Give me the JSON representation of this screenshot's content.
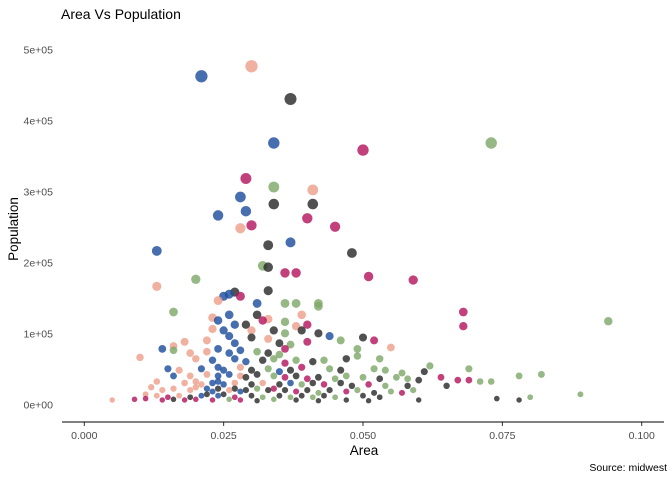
{
  "chart_data": {
    "type": "scatter",
    "title": "Area Vs Population",
    "xlabel": "Area",
    "ylabel": "Population",
    "caption": "Source: midwest",
    "xlim": [
      -0.004,
      0.104
    ],
    "ylim": [
      -25000,
      530000
    ],
    "x_ticks": [
      0.0,
      0.025,
      0.05,
      0.075,
      0.1
    ],
    "x_tick_labels": [
      "0.000",
      "0.025",
      "0.050",
      "0.075",
      "0.100"
    ],
    "y_ticks": [
      0,
      100000,
      200000,
      300000,
      400000,
      500000
    ],
    "y_tick_labels": [
      "0e+00",
      "1e+05",
      "2e+05",
      "3e+05",
      "4e+05",
      "5e+05"
    ],
    "grid": false,
    "legend": "none",
    "colors": {
      "blue": "#1f4e9e",
      "salmon": "#eea08c",
      "green": "#7fa86a",
      "dark": "#2b2b2b",
      "magenta": "#b5175f"
    },
    "points": [
      {
        "x": 0.021,
        "y": 462000,
        "c": "blue"
      },
      {
        "x": 0.03,
        "y": 476000,
        "c": "salmon"
      },
      {
        "x": 0.037,
        "y": 430000,
        "c": "dark"
      },
      {
        "x": 0.034,
        "y": 368000,
        "c": "blue"
      },
      {
        "x": 0.05,
        "y": 358000,
        "c": "magenta"
      },
      {
        "x": 0.073,
        "y": 368000,
        "c": "green"
      },
      {
        "x": 0.029,
        "y": 318000,
        "c": "magenta"
      },
      {
        "x": 0.034,
        "y": 306000,
        "c": "green"
      },
      {
        "x": 0.041,
        "y": 302000,
        "c": "salmon"
      },
      {
        "x": 0.028,
        "y": 292000,
        "c": "blue"
      },
      {
        "x": 0.034,
        "y": 282000,
        "c": "dark"
      },
      {
        "x": 0.041,
        "y": 282000,
        "c": "dark"
      },
      {
        "x": 0.029,
        "y": 272000,
        "c": "blue"
      },
      {
        "x": 0.024,
        "y": 266000,
        "c": "blue"
      },
      {
        "x": 0.04,
        "y": 262000,
        "c": "magenta"
      },
      {
        "x": 0.03,
        "y": 252000,
        "c": "magenta"
      },
      {
        "x": 0.028,
        "y": 248000,
        "c": "salmon"
      },
      {
        "x": 0.045,
        "y": 250000,
        "c": "magenta"
      },
      {
        "x": 0.033,
        "y": 224000,
        "c": "dark"
      },
      {
        "x": 0.037,
        "y": 228000,
        "c": "blue"
      },
      {
        "x": 0.013,
        "y": 216000,
        "c": "blue"
      },
      {
        "x": 0.048,
        "y": 213000,
        "c": "dark"
      },
      {
        "x": 0.032,
        "y": 195000,
        "c": "green"
      },
      {
        "x": 0.033,
        "y": 193000,
        "c": "dark"
      },
      {
        "x": 0.036,
        "y": 185000,
        "c": "magenta"
      },
      {
        "x": 0.038,
        "y": 185000,
        "c": "magenta"
      },
      {
        "x": 0.051,
        "y": 180000,
        "c": "magenta"
      },
      {
        "x": 0.02,
        "y": 176000,
        "c": "green"
      },
      {
        "x": 0.059,
        "y": 175000,
        "c": "magenta"
      },
      {
        "x": 0.013,
        "y": 166000,
        "c": "salmon"
      },
      {
        "x": 0.027,
        "y": 158000,
        "c": "dark"
      },
      {
        "x": 0.033,
        "y": 160000,
        "c": "dark"
      },
      {
        "x": 0.025,
        "y": 152000,
        "c": "blue"
      },
      {
        "x": 0.026,
        "y": 155000,
        "c": "blue"
      },
      {
        "x": 0.024,
        "y": 146000,
        "c": "salmon"
      },
      {
        "x": 0.028,
        "y": 152000,
        "c": "magenta"
      },
      {
        "x": 0.031,
        "y": 142000,
        "c": "blue"
      },
      {
        "x": 0.036,
        "y": 142000,
        "c": "green"
      },
      {
        "x": 0.038,
        "y": 142000,
        "c": "green"
      },
      {
        "x": 0.042,
        "y": 142000,
        "c": "green"
      },
      {
        "x": 0.042,
        "y": 138000,
        "c": "green"
      },
      {
        "x": 0.016,
        "y": 130000,
        "c": "green"
      },
      {
        "x": 0.068,
        "y": 130000,
        "c": "magenta"
      },
      {
        "x": 0.094,
        "y": 117000,
        "c": "green"
      },
      {
        "x": 0.023,
        "y": 122000,
        "c": "salmon"
      },
      {
        "x": 0.026,
        "y": 126000,
        "c": "blue"
      },
      {
        "x": 0.031,
        "y": 126000,
        "c": "dark"
      },
      {
        "x": 0.033,
        "y": 120000,
        "c": "salmon"
      },
      {
        "x": 0.039,
        "y": 126000,
        "c": "salmon"
      },
      {
        "x": 0.024,
        "y": 118000,
        "c": "blue"
      },
      {
        "x": 0.027,
        "y": 112000,
        "c": "blue"
      },
      {
        "x": 0.029,
        "y": 112000,
        "c": "dark"
      },
      {
        "x": 0.032,
        "y": 118000,
        "c": "magenta"
      },
      {
        "x": 0.036,
        "y": 116000,
        "c": "green"
      },
      {
        "x": 0.038,
        "y": 110000,
        "c": "salmon"
      },
      {
        "x": 0.04,
        "y": 112000,
        "c": "magenta"
      },
      {
        "x": 0.068,
        "y": 110000,
        "c": "magenta"
      },
      {
        "x": 0.023,
        "y": 106000,
        "c": "salmon"
      },
      {
        "x": 0.025,
        "y": 104000,
        "c": "blue"
      },
      {
        "x": 0.03,
        "y": 104000,
        "c": "salmon"
      },
      {
        "x": 0.034,
        "y": 104000,
        "c": "dark"
      },
      {
        "x": 0.036,
        "y": 100000,
        "c": "green"
      },
      {
        "x": 0.039,
        "y": 104000,
        "c": "dark"
      },
      {
        "x": 0.042,
        "y": 100000,
        "c": "dark"
      },
      {
        "x": 0.044,
        "y": 96000,
        "c": "blue"
      },
      {
        "x": 0.014,
        "y": 78000,
        "c": "blue"
      },
      {
        "x": 0.016,
        "y": 82000,
        "c": "salmon"
      },
      {
        "x": 0.018,
        "y": 88000,
        "c": "salmon"
      },
      {
        "x": 0.022,
        "y": 90000,
        "c": "salmon"
      },
      {
        "x": 0.026,
        "y": 96000,
        "c": "blue"
      },
      {
        "x": 0.027,
        "y": 86000,
        "c": "blue"
      },
      {
        "x": 0.03,
        "y": 94000,
        "c": "dark"
      },
      {
        "x": 0.033,
        "y": 92000,
        "c": "salmon"
      },
      {
        "x": 0.035,
        "y": 86000,
        "c": "dark"
      },
      {
        "x": 0.037,
        "y": 84000,
        "c": "green"
      },
      {
        "x": 0.04,
        "y": 88000,
        "c": "magenta"
      },
      {
        "x": 0.046,
        "y": 90000,
        "c": "green"
      },
      {
        "x": 0.05,
        "y": 94000,
        "c": "dark"
      },
      {
        "x": 0.052,
        "y": 90000,
        "c": "magenta"
      },
      {
        "x": 0.016,
        "y": 76000,
        "c": "green"
      },
      {
        "x": 0.019,
        "y": 72000,
        "c": "salmon"
      },
      {
        "x": 0.022,
        "y": 74000,
        "c": "salmon"
      },
      {
        "x": 0.024,
        "y": 78000,
        "c": "blue"
      },
      {
        "x": 0.026,
        "y": 72000,
        "c": "blue"
      },
      {
        "x": 0.028,
        "y": 76000,
        "c": "blue"
      },
      {
        "x": 0.031,
        "y": 74000,
        "c": "green"
      },
      {
        "x": 0.033,
        "y": 72000,
        "c": "dark"
      },
      {
        "x": 0.035,
        "y": 70000,
        "c": "green"
      },
      {
        "x": 0.036,
        "y": 78000,
        "c": "magenta"
      },
      {
        "x": 0.049,
        "y": 78000,
        "c": "green"
      },
      {
        "x": 0.055,
        "y": 80000,
        "c": "salmon"
      },
      {
        "x": 0.01,
        "y": 66000,
        "c": "salmon"
      },
      {
        "x": 0.02,
        "y": 64000,
        "c": "salmon"
      },
      {
        "x": 0.023,
        "y": 62000,
        "c": "blue"
      },
      {
        "x": 0.027,
        "y": 64000,
        "c": "blue"
      },
      {
        "x": 0.029,
        "y": 60000,
        "c": "blue"
      },
      {
        "x": 0.032,
        "y": 62000,
        "c": "dark"
      },
      {
        "x": 0.034,
        "y": 64000,
        "c": "green"
      },
      {
        "x": 0.036,
        "y": 58000,
        "c": "magenta"
      },
      {
        "x": 0.038,
        "y": 62000,
        "c": "green"
      },
      {
        "x": 0.041,
        "y": 60000,
        "c": "dark"
      },
      {
        "x": 0.043,
        "y": 62000,
        "c": "green"
      },
      {
        "x": 0.047,
        "y": 64000,
        "c": "dark"
      },
      {
        "x": 0.049,
        "y": 68000,
        "c": "green"
      },
      {
        "x": 0.053,
        "y": 64000,
        "c": "green"
      },
      {
        "x": 0.062,
        "y": 54000,
        "c": "green"
      },
      {
        "x": 0.069,
        "y": 50000,
        "c": "green"
      },
      {
        "x": 0.015,
        "y": 50000,
        "c": "blue"
      },
      {
        "x": 0.017,
        "y": 48000,
        "c": "salmon"
      },
      {
        "x": 0.021,
        "y": 50000,
        "c": "blue"
      },
      {
        "x": 0.024,
        "y": 52000,
        "c": "blue"
      },
      {
        "x": 0.025,
        "y": 48000,
        "c": "blue"
      },
      {
        "x": 0.028,
        "y": 52000,
        "c": "salmon"
      },
      {
        "x": 0.03,
        "y": 48000,
        "c": "dark"
      },
      {
        "x": 0.033,
        "y": 50000,
        "c": "green"
      },
      {
        "x": 0.035,
        "y": 46000,
        "c": "blue"
      },
      {
        "x": 0.037,
        "y": 48000,
        "c": "dark"
      },
      {
        "x": 0.039,
        "y": 52000,
        "c": "magenta"
      },
      {
        "x": 0.044,
        "y": 50000,
        "c": "green"
      },
      {
        "x": 0.046,
        "y": 48000,
        "c": "dark"
      },
      {
        "x": 0.052,
        "y": 50000,
        "c": "green"
      },
      {
        "x": 0.054,
        "y": 48000,
        "c": "green"
      },
      {
        "x": 0.057,
        "y": 44000,
        "c": "green"
      },
      {
        "x": 0.061,
        "y": 46000,
        "c": "dark"
      },
      {
        "x": 0.016,
        "y": 40000,
        "c": "blue"
      },
      {
        "x": 0.019,
        "y": 40000,
        "c": "salmon"
      },
      {
        "x": 0.022,
        "y": 42000,
        "c": "salmon"
      },
      {
        "x": 0.024,
        "y": 40000,
        "c": "blue"
      },
      {
        "x": 0.026,
        "y": 42000,
        "c": "blue"
      },
      {
        "x": 0.028,
        "y": 40000,
        "c": "salmon"
      },
      {
        "x": 0.029,
        "y": 38000,
        "c": "dark"
      },
      {
        "x": 0.031,
        "y": 42000,
        "c": "dark"
      },
      {
        "x": 0.034,
        "y": 40000,
        "c": "green"
      },
      {
        "x": 0.036,
        "y": 38000,
        "c": "magenta"
      },
      {
        "x": 0.038,
        "y": 40000,
        "c": "dark"
      },
      {
        "x": 0.04,
        "y": 36000,
        "c": "magenta"
      },
      {
        "x": 0.042,
        "y": 38000,
        "c": "dark"
      },
      {
        "x": 0.045,
        "y": 36000,
        "c": "green"
      },
      {
        "x": 0.047,
        "y": 40000,
        "c": "green"
      },
      {
        "x": 0.05,
        "y": 38000,
        "c": "green"
      },
      {
        "x": 0.053,
        "y": 36000,
        "c": "dark"
      },
      {
        "x": 0.056,
        "y": 38000,
        "c": "green"
      },
      {
        "x": 0.058,
        "y": 36000,
        "c": "green"
      },
      {
        "x": 0.06,
        "y": 34000,
        "c": "dark"
      },
      {
        "x": 0.064,
        "y": 38000,
        "c": "magenta"
      },
      {
        "x": 0.067,
        "y": 34000,
        "c": "magenta"
      },
      {
        "x": 0.069,
        "y": 34000,
        "c": "magenta"
      },
      {
        "x": 0.071,
        "y": 32000,
        "c": "green"
      },
      {
        "x": 0.073,
        "y": 32000,
        "c": "green"
      },
      {
        "x": 0.078,
        "y": 40000,
        "c": "green"
      },
      {
        "x": 0.082,
        "y": 42000,
        "c": "green"
      },
      {
        "x": 0.013,
        "y": 32000,
        "c": "salmon"
      },
      {
        "x": 0.018,
        "y": 30000,
        "c": "salmon"
      },
      {
        "x": 0.02,
        "y": 32000,
        "c": "salmon"
      },
      {
        "x": 0.021,
        "y": 28000,
        "c": "salmon"
      },
      {
        "x": 0.023,
        "y": 30000,
        "c": "blue"
      },
      {
        "x": 0.024,
        "y": 32000,
        "c": "blue"
      },
      {
        "x": 0.025,
        "y": 28000,
        "c": "blue"
      },
      {
        "x": 0.027,
        "y": 30000,
        "c": "salmon"
      },
      {
        "x": 0.03,
        "y": 28000,
        "c": "dark"
      },
      {
        "x": 0.032,
        "y": 30000,
        "c": "salmon"
      },
      {
        "x": 0.035,
        "y": 28000,
        "c": "dark"
      },
      {
        "x": 0.037,
        "y": 30000,
        "c": "blue"
      },
      {
        "x": 0.039,
        "y": 28000,
        "c": "green"
      },
      {
        "x": 0.041,
        "y": 30000,
        "c": "dark"
      },
      {
        "x": 0.043,
        "y": 28000,
        "c": "magenta"
      },
      {
        "x": 0.046,
        "y": 30000,
        "c": "dark"
      },
      {
        "x": 0.048,
        "y": 26000,
        "c": "dark"
      },
      {
        "x": 0.051,
        "y": 28000,
        "c": "magenta"
      },
      {
        "x": 0.054,
        "y": 26000,
        "c": "green"
      },
      {
        "x": 0.058,
        "y": 26000,
        "c": "dark"
      },
      {
        "x": 0.065,
        "y": 26000,
        "c": "dark"
      },
      {
        "x": 0.012,
        "y": 24000,
        "c": "salmon"
      },
      {
        "x": 0.014,
        "y": 20000,
        "c": "salmon"
      },
      {
        "x": 0.016,
        "y": 22000,
        "c": "salmon"
      },
      {
        "x": 0.019,
        "y": 20000,
        "c": "salmon"
      },
      {
        "x": 0.02,
        "y": 24000,
        "c": "salmon"
      },
      {
        "x": 0.022,
        "y": 22000,
        "c": "blue"
      },
      {
        "x": 0.023,
        "y": 18000,
        "c": "blue"
      },
      {
        "x": 0.024,
        "y": 22000,
        "c": "dark"
      },
      {
        "x": 0.026,
        "y": 20000,
        "c": "salmon"
      },
      {
        "x": 0.027,
        "y": 22000,
        "c": "dark"
      },
      {
        "x": 0.028,
        "y": 18000,
        "c": "blue"
      },
      {
        "x": 0.029,
        "y": 20000,
        "c": "dark"
      },
      {
        "x": 0.031,
        "y": 22000,
        "c": "green"
      },
      {
        "x": 0.033,
        "y": 20000,
        "c": "dark"
      },
      {
        "x": 0.034,
        "y": 22000,
        "c": "magenta"
      },
      {
        "x": 0.036,
        "y": 20000,
        "c": "dark"
      },
      {
        "x": 0.038,
        "y": 18000,
        "c": "magenta"
      },
      {
        "x": 0.04,
        "y": 20000,
        "c": "dark"
      },
      {
        "x": 0.042,
        "y": 16000,
        "c": "green"
      },
      {
        "x": 0.044,
        "y": 20000,
        "c": "dark"
      },
      {
        "x": 0.047,
        "y": 18000,
        "c": "magenta"
      },
      {
        "x": 0.049,
        "y": 20000,
        "c": "green"
      },
      {
        "x": 0.052,
        "y": 16000,
        "c": "dark"
      },
      {
        "x": 0.055,
        "y": 18000,
        "c": "green"
      },
      {
        "x": 0.057,
        "y": 16000,
        "c": "magenta"
      },
      {
        "x": 0.059,
        "y": 20000,
        "c": "green"
      },
      {
        "x": 0.011,
        "y": 14000,
        "c": "salmon"
      },
      {
        "x": 0.013,
        "y": 12000,
        "c": "salmon"
      },
      {
        "x": 0.015,
        "y": 10000,
        "c": "magenta"
      },
      {
        "x": 0.017,
        "y": 12000,
        "c": "salmon"
      },
      {
        "x": 0.019,
        "y": 10000,
        "c": "dark"
      },
      {
        "x": 0.021,
        "y": 12000,
        "c": "blue"
      },
      {
        "x": 0.022,
        "y": 14000,
        "c": "dark"
      },
      {
        "x": 0.024,
        "y": 12000,
        "c": "blue"
      },
      {
        "x": 0.025,
        "y": 14000,
        "c": "dark"
      },
      {
        "x": 0.027,
        "y": 10000,
        "c": "magenta"
      },
      {
        "x": 0.03,
        "y": 12000,
        "c": "dark"
      },
      {
        "x": 0.032,
        "y": 10000,
        "c": "green"
      },
      {
        "x": 0.035,
        "y": 12000,
        "c": "dark"
      },
      {
        "x": 0.037,
        "y": 10000,
        "c": "green"
      },
      {
        "x": 0.039,
        "y": 12000,
        "c": "dark"
      },
      {
        "x": 0.041,
        "y": 10000,
        "c": "green"
      },
      {
        "x": 0.043,
        "y": 12000,
        "c": "dark"
      },
      {
        "x": 0.045,
        "y": 10000,
        "c": "green"
      },
      {
        "x": 0.05,
        "y": 12000,
        "c": "dark"
      },
      {
        "x": 0.053,
        "y": 10000,
        "c": "dark"
      },
      {
        "x": 0.005,
        "y": 6000,
        "c": "salmon"
      },
      {
        "x": 0.009,
        "y": 7000,
        "c": "magenta"
      },
      {
        "x": 0.011,
        "y": 8000,
        "c": "magenta"
      },
      {
        "x": 0.014,
        "y": 6000,
        "c": "magenta"
      },
      {
        "x": 0.016,
        "y": 7000,
        "c": "dark"
      },
      {
        "x": 0.018,
        "y": 6000,
        "c": "magenta"
      },
      {
        "x": 0.02,
        "y": 7000,
        "c": "magenta"
      },
      {
        "x": 0.023,
        "y": 6000,
        "c": "magenta"
      },
      {
        "x": 0.026,
        "y": 7000,
        "c": "green"
      },
      {
        "x": 0.028,
        "y": 6000,
        "c": "magenta"
      },
      {
        "x": 0.031,
        "y": 5000,
        "c": "dark"
      },
      {
        "x": 0.034,
        "y": 7000,
        "c": "green"
      },
      {
        "x": 0.038,
        "y": 6000,
        "c": "dark"
      },
      {
        "x": 0.042,
        "y": 5000,
        "c": "dark"
      },
      {
        "x": 0.047,
        "y": 6000,
        "c": "dark"
      },
      {
        "x": 0.051,
        "y": 5000,
        "c": "dark"
      },
      {
        "x": 0.06,
        "y": 6000,
        "c": "dark"
      },
      {
        "x": 0.074,
        "y": 8000,
        "c": "dark"
      },
      {
        "x": 0.078,
        "y": 6000,
        "c": "dark"
      },
      {
        "x": 0.08,
        "y": 10000,
        "c": "green"
      },
      {
        "x": 0.089,
        "y": 14000,
        "c": "green"
      }
    ]
  }
}
